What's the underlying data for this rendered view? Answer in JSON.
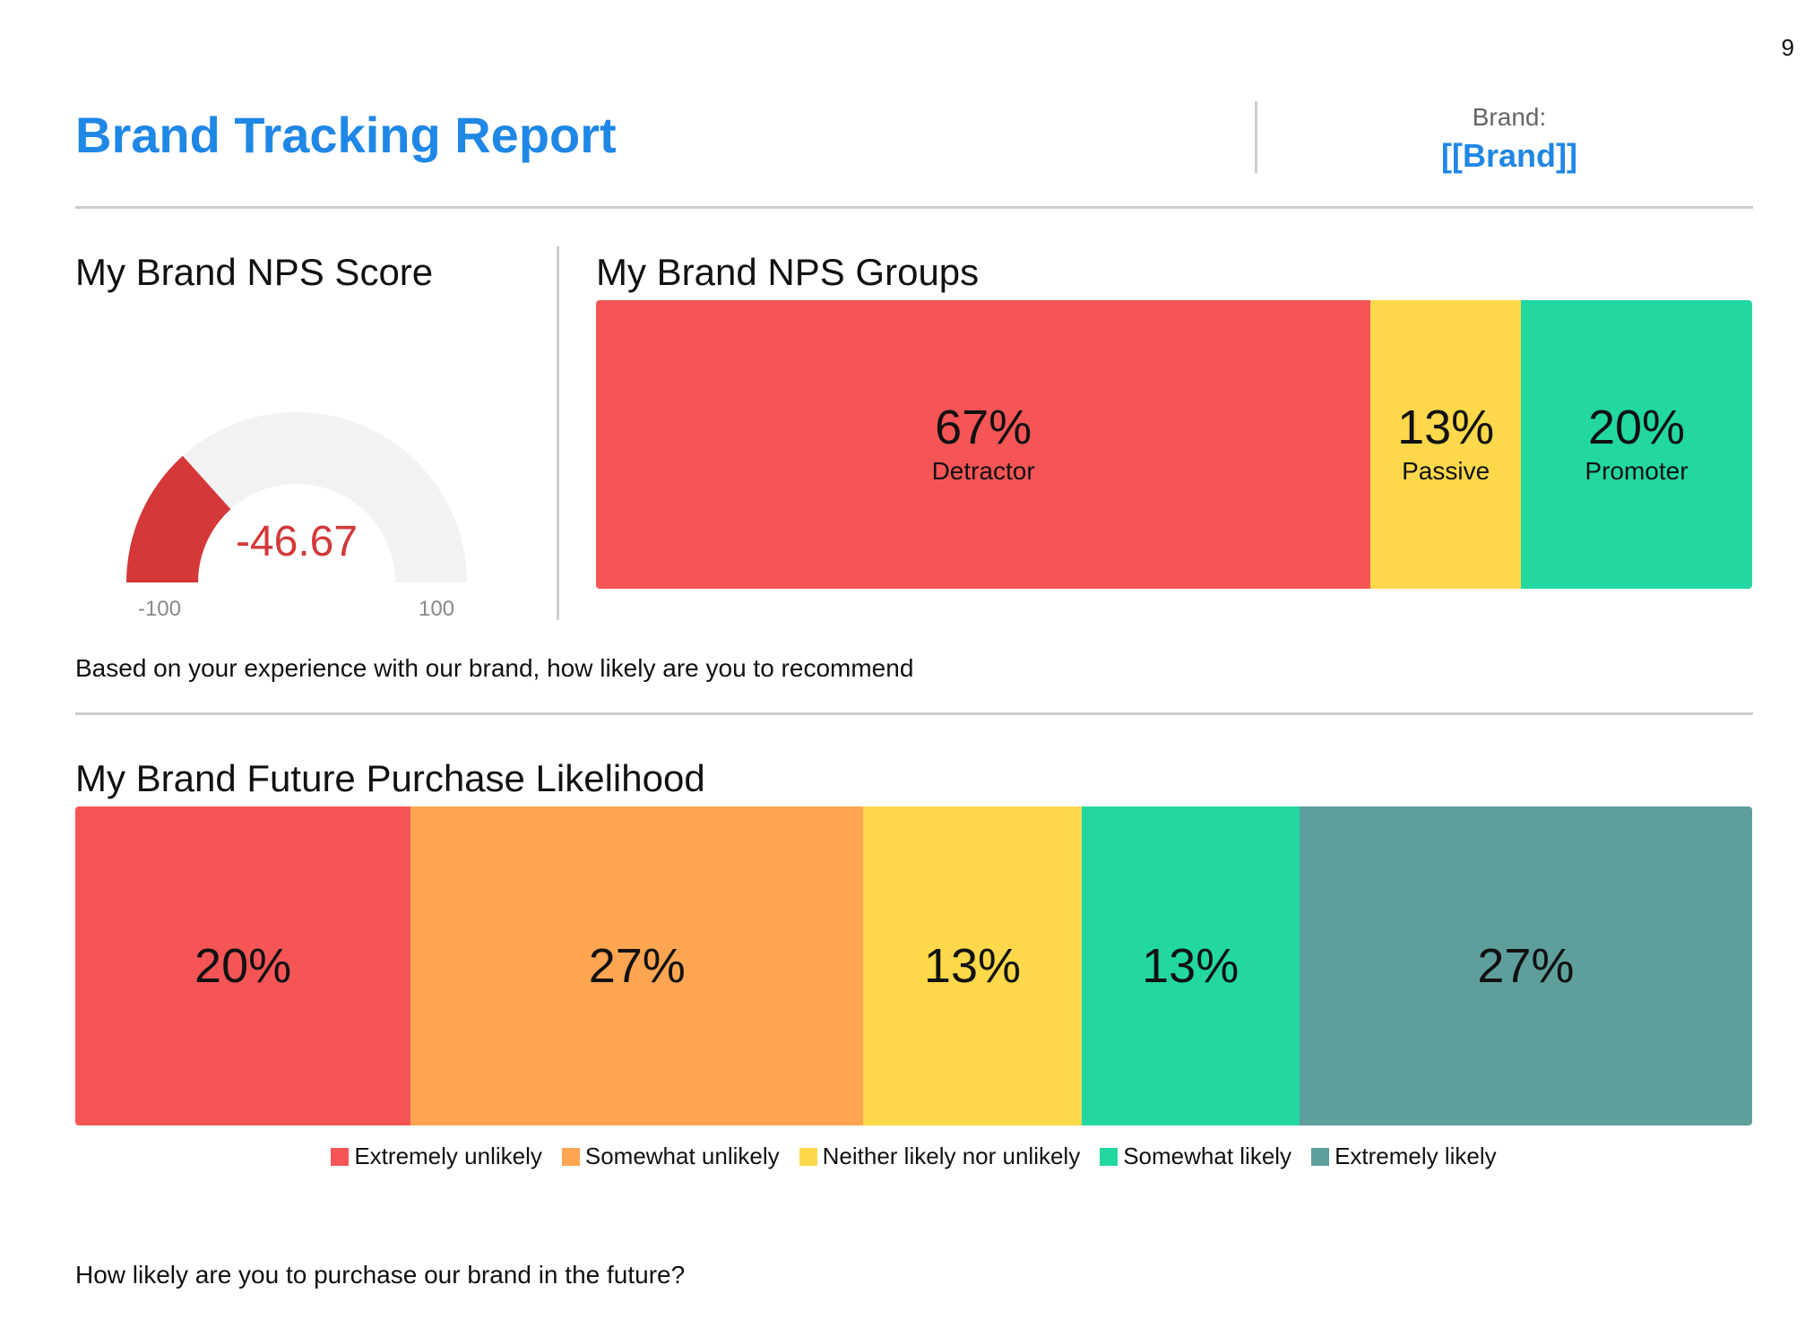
{
  "page_number": "9",
  "header": {
    "title": "Brand Tracking Report",
    "brand_label": "Brand:",
    "brand_value": "[[Brand]]"
  },
  "nps_score": {
    "title": "My Brand NPS Score",
    "question": "Based on your experience with our brand, how likely are you to recommend"
  },
  "nps_groups": {
    "title": "My Brand NPS Groups"
  },
  "purchase": {
    "title": "My Brand Future Purchase Likelihood",
    "question": "How likely are you to purchase our brand in the future?"
  },
  "chart_data": [
    {
      "id": "nps-gauge",
      "type": "gauge",
      "value": -46.67,
      "value_label": "-46.67",
      "min": -100,
      "max": 100,
      "min_label": "-100",
      "max_label": "100",
      "colors": {
        "value": "#d43838",
        "track": "#f2f2f2",
        "value_text": "#d43838",
        "tick_text": "#888888"
      }
    },
    {
      "id": "nps-groups",
      "type": "bar",
      "orientation": "horizontal-stacked",
      "segments": [
        {
          "label": "Detractor",
          "value": 67,
          "value_label": "67%",
          "color": "#f65556"
        },
        {
          "label": "Passive",
          "value": 13,
          "value_label": "13%",
          "color": "#fed84b"
        },
        {
          "label": "Promoter",
          "value": 20,
          "value_label": "20%",
          "color": "#22d8a0"
        }
      ]
    },
    {
      "id": "purchase-likelihood",
      "type": "bar",
      "orientation": "horizontal-stacked",
      "legend_position": "bottom",
      "segments": [
        {
          "name": "Extremely unlikely",
          "value": 20,
          "value_label": "20%",
          "color": "#f65556"
        },
        {
          "name": "Somewhat unlikely",
          "value": 27,
          "value_label": "27%",
          "color": "#fea552"
        },
        {
          "name": "Neither likely nor unlikely",
          "value": 13,
          "value_label": "13%",
          "color": "#fed84b"
        },
        {
          "name": "Somewhat likely",
          "value": 13,
          "value_label": "13%",
          "color": "#22d8a0"
        },
        {
          "name": "Extremely likely",
          "value": 27,
          "value_label": "27%",
          "color": "#5e9f9c"
        }
      ]
    }
  ]
}
